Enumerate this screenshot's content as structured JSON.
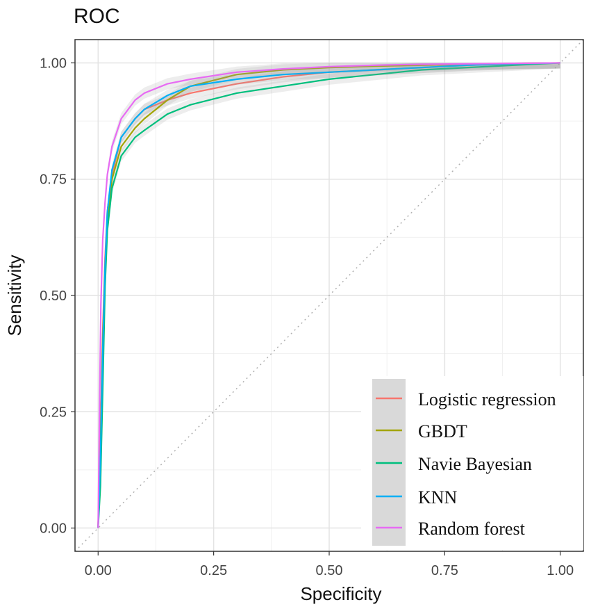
{
  "chart_data": {
    "type": "line",
    "title": "ROC",
    "xlabel": "Specificity",
    "ylabel": "Sensitivity",
    "xlim": [
      -0.05,
      1.05
    ],
    "ylim": [
      -0.05,
      1.05
    ],
    "x_ticks": [
      "0.00",
      "0.25",
      "0.50",
      "0.75",
      "1.00"
    ],
    "y_ticks": [
      "0.00",
      "0.25",
      "0.50",
      "0.75",
      "1.00"
    ],
    "grid": true,
    "reference_line": "diagonal",
    "legend_position": "bottom-right",
    "series": [
      {
        "name": "Logistic regression",
        "color": "#F8766D",
        "x": [
          0,
          0.005,
          0.01,
          0.015,
          0.02,
          0.03,
          0.05,
          0.08,
          0.1,
          0.15,
          0.2,
          0.3,
          0.4,
          0.5,
          0.6,
          0.7,
          0.8,
          0.9,
          1.0
        ],
        "y": [
          0,
          0.2,
          0.42,
          0.58,
          0.68,
          0.76,
          0.84,
          0.88,
          0.9,
          0.92,
          0.935,
          0.955,
          0.97,
          0.98,
          0.985,
          0.99,
          0.995,
          0.998,
          1.0
        ]
      },
      {
        "name": "GBDT",
        "color": "#A3A500",
        "x": [
          0,
          0.005,
          0.01,
          0.015,
          0.02,
          0.03,
          0.05,
          0.08,
          0.1,
          0.15,
          0.2,
          0.3,
          0.4,
          0.5,
          0.6,
          0.7,
          0.8,
          0.9,
          1.0
        ],
        "y": [
          0,
          0.18,
          0.4,
          0.56,
          0.66,
          0.75,
          0.82,
          0.86,
          0.88,
          0.92,
          0.95,
          0.975,
          0.985,
          0.99,
          0.993,
          0.995,
          0.997,
          0.999,
          1.0
        ]
      },
      {
        "name": "Navie Bayesian",
        "color": "#00BF7D",
        "x": [
          0,
          0.005,
          0.01,
          0.015,
          0.02,
          0.03,
          0.05,
          0.08,
          0.1,
          0.15,
          0.2,
          0.3,
          0.4,
          0.5,
          0.6,
          0.7,
          0.8,
          0.9,
          1.0
        ],
        "y": [
          0,
          0.09,
          0.3,
          0.52,
          0.64,
          0.73,
          0.8,
          0.84,
          0.855,
          0.89,
          0.91,
          0.935,
          0.95,
          0.965,
          0.975,
          0.985,
          0.99,
          0.995,
          1.0
        ]
      },
      {
        "name": "KNN",
        "color": "#00B0F6",
        "x": [
          0,
          0.005,
          0.01,
          0.015,
          0.02,
          0.03,
          0.05,
          0.08,
          0.1,
          0.15,
          0.2,
          0.3,
          0.4,
          0.5,
          0.6,
          0.7,
          0.8,
          0.9,
          1.0
        ],
        "y": [
          0,
          0.15,
          0.38,
          0.56,
          0.68,
          0.77,
          0.84,
          0.88,
          0.9,
          0.93,
          0.95,
          0.965,
          0.975,
          0.98,
          0.985,
          0.99,
          0.995,
          0.998,
          1.0
        ]
      },
      {
        "name": "Random forest",
        "color": "#E76BF3",
        "x": [
          0,
          0.003,
          0.006,
          0.01,
          0.015,
          0.02,
          0.03,
          0.05,
          0.08,
          0.1,
          0.15,
          0.2,
          0.3,
          0.4,
          0.5,
          0.6,
          0.7,
          0.8,
          0.9,
          1.0
        ],
        "y": [
          0,
          0.25,
          0.48,
          0.62,
          0.7,
          0.76,
          0.82,
          0.88,
          0.92,
          0.935,
          0.955,
          0.965,
          0.98,
          0.987,
          0.992,
          0.995,
          0.997,
          0.998,
          0.999,
          1.0
        ]
      }
    ]
  }
}
